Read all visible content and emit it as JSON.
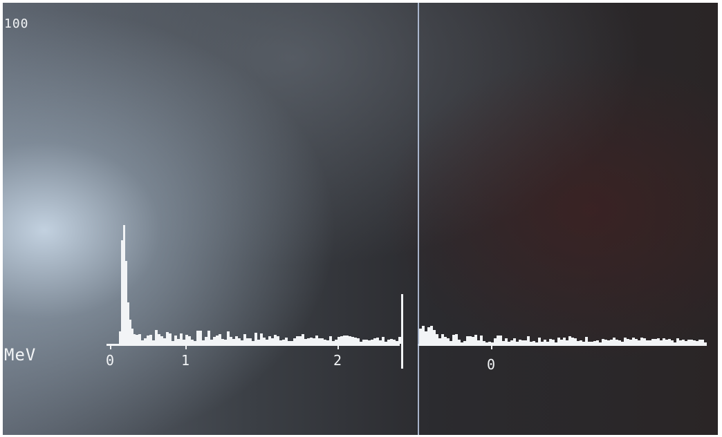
{
  "display": {
    "top_label": "100",
    "unit_label": "MeV",
    "tick_labels": [
      "0",
      "1",
      "2",
      "0"
    ]
  }
}
